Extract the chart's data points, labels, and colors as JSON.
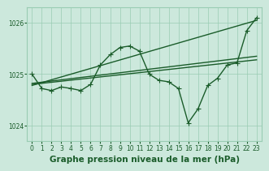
{
  "title": "Graphe pression niveau de la mer (hPa)",
  "bg_color": "#cce8dc",
  "plot_bg_color": "#cce8dc",
  "grid_color": "#99ccb3",
  "line_color": "#1a5c2a",
  "ylim": [
    1023.7,
    1026.3
  ],
  "yticks": [
    1024,
    1025,
    1026
  ],
  "xlim": [
    -0.5,
    23.5
  ],
  "xticks": [
    0,
    1,
    2,
    3,
    4,
    5,
    6,
    7,
    8,
    9,
    10,
    11,
    12,
    13,
    14,
    15,
    16,
    17,
    18,
    19,
    20,
    21,
    22,
    23
  ],
  "series_markers": [
    1025.0,
    1024.72,
    1024.68,
    1024.75,
    1024.72,
    1024.68,
    1024.8,
    1025.18,
    1025.38,
    1025.52,
    1025.55,
    1025.45,
    1025.0,
    1024.88,
    1024.85,
    1024.72,
    1024.05,
    1024.32,
    1024.78,
    1024.92,
    1025.18,
    1025.22,
    1025.85,
    1026.1
  ],
  "series_linear1": [
    [
      0,
      1024.78
    ],
    [
      23,
      1026.05
    ]
  ],
  "series_linear2": [
    [
      0,
      1024.82
    ],
    [
      23,
      1025.35
    ]
  ],
  "series_linear3": [
    [
      0,
      1024.8
    ],
    [
      23,
      1025.28
    ]
  ],
  "marker": "+",
  "markersize": 4,
  "linewidth": 1.0,
  "title_fontsize": 7.5,
  "tick_fontsize": 5.5
}
